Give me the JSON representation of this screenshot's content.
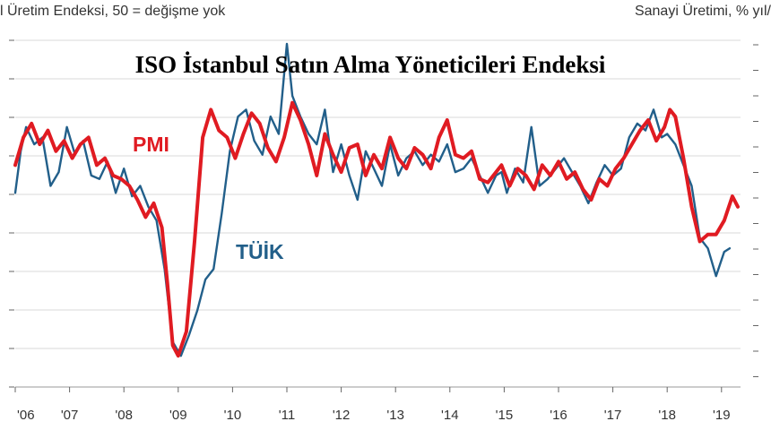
{
  "header": {
    "left": "l Üretim Endeksi, 50 = değişme yok",
    "right": "Sanayi Üretimi, % yıl/"
  },
  "chart_data": {
    "type": "line",
    "title": "ISO İstanbul Satın Alma Yöneticileri Endeksi",
    "xlabel": "",
    "ylabel": "",
    "grid": true,
    "xlim": [
      2006.0,
      2019.35
    ],
    "x_tick_labels": [
      "'06",
      "'07",
      "'08",
      "'09",
      "'10",
      "'11",
      "'12",
      "'13",
      "'14",
      "'15",
      "'16",
      "'17",
      "'18",
      "'19"
    ],
    "x_tick_values": [
      2006,
      2007,
      2008,
      2009,
      2010,
      2011,
      2012,
      2013,
      2014,
      2015,
      2016,
      2017,
      2018,
      2019
    ],
    "y_scale_note": "axis values not printed; series are given in relative plot units (0 = bottom, 100 = top of plot area)",
    "ylim": [
      0,
      100
    ],
    "series": [
      {
        "name": "PMI",
        "color": "#e01b22",
        "points": [
          [
            2006.0,
            64
          ],
          [
            2006.15,
            72
          ],
          [
            2006.3,
            76
          ],
          [
            2006.45,
            70
          ],
          [
            2006.6,
            74
          ],
          [
            2006.75,
            68
          ],
          [
            2006.9,
            71
          ],
          [
            2007.05,
            66
          ],
          [
            2007.2,
            70
          ],
          [
            2007.35,
            72
          ],
          [
            2007.5,
            64
          ],
          [
            2007.65,
            66
          ],
          [
            2007.8,
            61
          ],
          [
            2007.95,
            60
          ],
          [
            2008.1,
            58
          ],
          [
            2008.25,
            54
          ],
          [
            2008.4,
            49
          ],
          [
            2008.55,
            53
          ],
          [
            2008.7,
            46
          ],
          [
            2008.8,
            30
          ],
          [
            2008.9,
            12
          ],
          [
            2009.0,
            9
          ],
          [
            2009.15,
            16
          ],
          [
            2009.3,
            42
          ],
          [
            2009.45,
            72
          ],
          [
            2009.6,
            80
          ],
          [
            2009.75,
            74
          ],
          [
            2009.9,
            72
          ],
          [
            2010.05,
            66
          ],
          [
            2010.2,
            73
          ],
          [
            2010.35,
            79
          ],
          [
            2010.5,
            76
          ],
          [
            2010.65,
            69
          ],
          [
            2010.8,
            65
          ],
          [
            2010.95,
            72
          ],
          [
            2011.1,
            82
          ],
          [
            2011.25,
            77
          ],
          [
            2011.4,
            70
          ],
          [
            2011.55,
            61
          ],
          [
            2011.7,
            73
          ],
          [
            2011.85,
            67
          ],
          [
            2012.0,
            62
          ],
          [
            2012.15,
            69
          ],
          [
            2012.3,
            70
          ],
          [
            2012.45,
            61
          ],
          [
            2012.6,
            67
          ],
          [
            2012.75,
            63
          ],
          [
            2012.9,
            72
          ],
          [
            2013.05,
            66
          ],
          [
            2013.2,
            63
          ],
          [
            2013.35,
            69
          ],
          [
            2013.5,
            67
          ],
          [
            2013.65,
            63
          ],
          [
            2013.8,
            72
          ],
          [
            2013.95,
            77
          ],
          [
            2014.1,
            67
          ],
          [
            2014.25,
            66
          ],
          [
            2014.4,
            68
          ],
          [
            2014.55,
            60
          ],
          [
            2014.7,
            59
          ],
          [
            2014.85,
            62
          ],
          [
            2014.95,
            64
          ],
          [
            2015.1,
            58
          ],
          [
            2015.25,
            63
          ],
          [
            2015.4,
            61
          ],
          [
            2015.55,
            57
          ],
          [
            2015.7,
            64
          ],
          [
            2015.85,
            61
          ],
          [
            2016.0,
            65
          ],
          [
            2016.15,
            60
          ],
          [
            2016.3,
            62
          ],
          [
            2016.45,
            57
          ],
          [
            2016.6,
            54
          ],
          [
            2016.75,
            60
          ],
          [
            2016.9,
            58
          ],
          [
            2017.05,
            63
          ],
          [
            2017.2,
            66
          ],
          [
            2017.35,
            70
          ],
          [
            2017.5,
            74
          ],
          [
            2017.65,
            77
          ],
          [
            2017.8,
            71
          ],
          [
            2017.95,
            75
          ],
          [
            2018.05,
            80
          ],
          [
            2018.15,
            78
          ],
          [
            2018.3,
            66
          ],
          [
            2018.45,
            52
          ],
          [
            2018.6,
            42
          ],
          [
            2018.75,
            44
          ],
          [
            2018.9,
            44
          ],
          [
            2019.05,
            48
          ],
          [
            2019.2,
            55
          ],
          [
            2019.3,
            52
          ]
        ]
      },
      {
        "name": "TÜİK",
        "color": "#225f8a",
        "points": [
          [
            2006.0,
            56
          ],
          [
            2006.1,
            68
          ],
          [
            2006.2,
            75
          ],
          [
            2006.35,
            70
          ],
          [
            2006.5,
            72
          ],
          [
            2006.65,
            58
          ],
          [
            2006.8,
            62
          ],
          [
            2006.95,
            75
          ],
          [
            2007.1,
            67
          ],
          [
            2007.25,
            71
          ],
          [
            2007.4,
            61
          ],
          [
            2007.55,
            60
          ],
          [
            2007.7,
            65
          ],
          [
            2007.85,
            56
          ],
          [
            2008.0,
            63
          ],
          [
            2008.15,
            55
          ],
          [
            2008.3,
            58
          ],
          [
            2008.45,
            52
          ],
          [
            2008.6,
            48
          ],
          [
            2008.75,
            34
          ],
          [
            2008.9,
            13
          ],
          [
            2009.05,
            9
          ],
          [
            2009.2,
            15
          ],
          [
            2009.35,
            22
          ],
          [
            2009.5,
            31
          ],
          [
            2009.65,
            34
          ],
          [
            2009.8,
            50
          ],
          [
            2009.95,
            68
          ],
          [
            2010.1,
            78
          ],
          [
            2010.25,
            80
          ],
          [
            2010.4,
            71
          ],
          [
            2010.55,
            67
          ],
          [
            2010.7,
            78
          ],
          [
            2010.85,
            73
          ],
          [
            2011.0,
            99
          ],
          [
            2011.1,
            84
          ],
          [
            2011.25,
            78
          ],
          [
            2011.4,
            73
          ],
          [
            2011.55,
            70
          ],
          [
            2011.7,
            80
          ],
          [
            2011.85,
            62
          ],
          [
            2012.0,
            70
          ],
          [
            2012.15,
            61
          ],
          [
            2012.3,
            54
          ],
          [
            2012.45,
            68
          ],
          [
            2012.6,
            63
          ],
          [
            2012.75,
            58
          ],
          [
            2012.9,
            70
          ],
          [
            2013.05,
            61
          ],
          [
            2013.2,
            66
          ],
          [
            2013.35,
            68
          ],
          [
            2013.5,
            64
          ],
          [
            2013.65,
            67
          ],
          [
            2013.8,
            65
          ],
          [
            2013.95,
            70
          ],
          [
            2014.1,
            62
          ],
          [
            2014.25,
            63
          ],
          [
            2014.4,
            66
          ],
          [
            2014.55,
            61
          ],
          [
            2014.7,
            56
          ],
          [
            2014.85,
            61
          ],
          [
            2014.95,
            62
          ],
          [
            2015.05,
            56
          ],
          [
            2015.2,
            63
          ],
          [
            2015.35,
            59
          ],
          [
            2015.5,
            75
          ],
          [
            2015.65,
            58
          ],
          [
            2015.8,
            60
          ],
          [
            2015.95,
            63
          ],
          [
            2016.1,
            66
          ],
          [
            2016.25,
            62
          ],
          [
            2016.4,
            58
          ],
          [
            2016.55,
            53
          ],
          [
            2016.7,
            59
          ],
          [
            2016.85,
            64
          ],
          [
            2017.0,
            61
          ],
          [
            2017.15,
            63
          ],
          [
            2017.3,
            72
          ],
          [
            2017.45,
            76
          ],
          [
            2017.6,
            74
          ],
          [
            2017.75,
            80
          ],
          [
            2017.9,
            72
          ],
          [
            2018.0,
            73
          ],
          [
            2018.15,
            70
          ],
          [
            2018.3,
            64
          ],
          [
            2018.45,
            58
          ],
          [
            2018.6,
            43
          ],
          [
            2018.75,
            40
          ],
          [
            2018.9,
            32
          ],
          [
            2019.05,
            39
          ],
          [
            2019.15,
            40
          ]
        ]
      }
    ],
    "annotations": [
      {
        "text": "PMI",
        "series": "PMI"
      },
      {
        "text": "TÜİK",
        "series": "TÜİK"
      }
    ]
  }
}
